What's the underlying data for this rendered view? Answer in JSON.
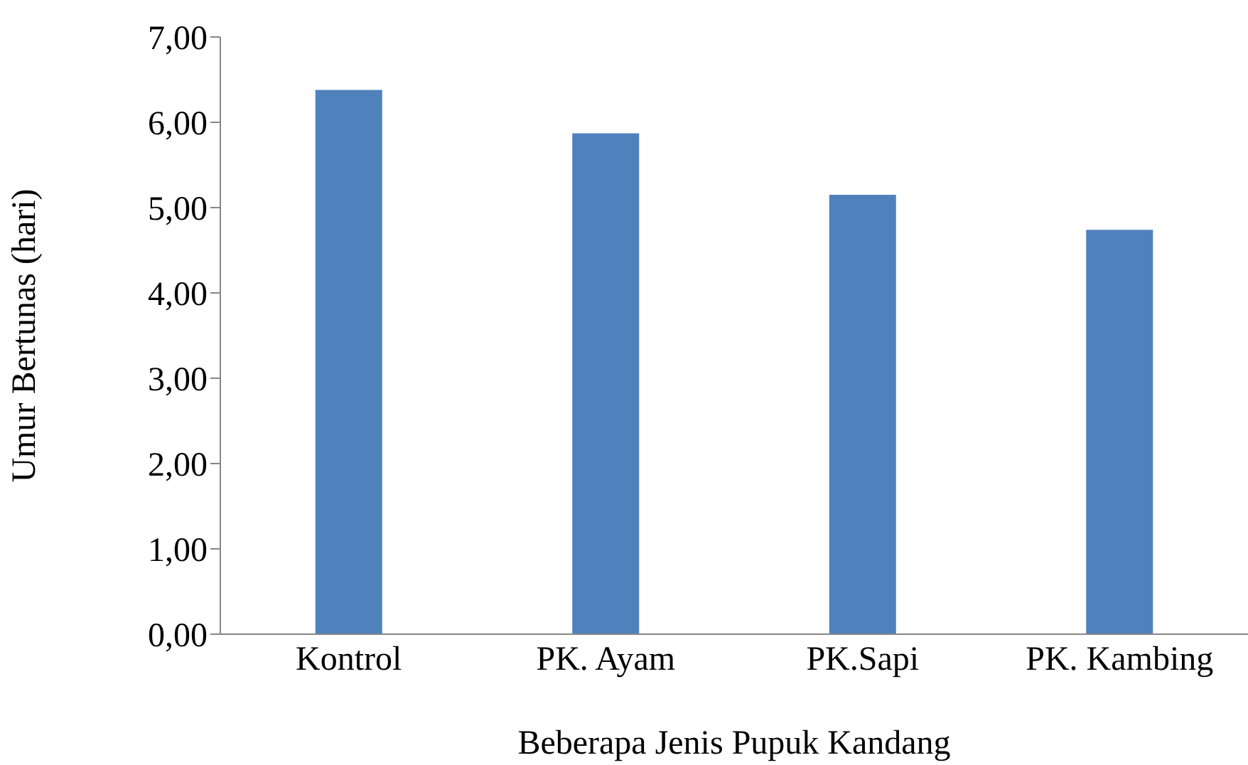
{
  "chart_data": {
    "type": "bar",
    "xlabel": "Beberapa Jenis Pupuk Kandang",
    "ylabel": "Umur Bertunas (hari)",
    "categories": [
      "Kontrol",
      "PK. Ayam",
      "PK.Sapi",
      "PK. Kambing"
    ],
    "values": [
      6.38,
      5.87,
      5.15,
      4.74
    ],
    "color": "#4f81bd",
    "ylim": [
      0,
      7
    ],
    "yticks": [
      {
        "value": 0,
        "label": "0,00"
      },
      {
        "value": 1,
        "label": "1,00"
      },
      {
        "value": 2,
        "label": "2,00"
      },
      {
        "value": 3,
        "label": "3,00"
      },
      {
        "value": 4,
        "label": "4,00"
      },
      {
        "value": 5,
        "label": "5,00"
      },
      {
        "value": 6,
        "label": "6,00"
      },
      {
        "value": 7,
        "label": "7,00"
      }
    ],
    "grid": false,
    "legend": false
  }
}
